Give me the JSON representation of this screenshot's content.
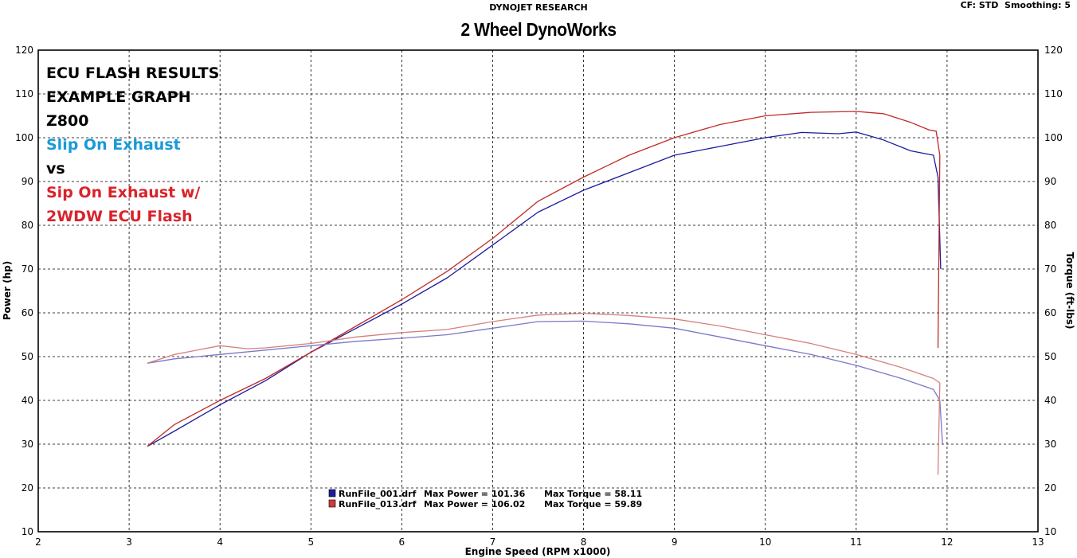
{
  "header": {
    "brand": "DYNOJET RESEARCH",
    "title": "2 Wheel DynoWorks",
    "settings": "CF: STD  Smoothing: 5"
  },
  "annotations": [
    {
      "text": "ECU FLASH RESULTS",
      "color": "#000000"
    },
    {
      "text": "EXAMPLE GRAPH",
      "color": "#000000"
    },
    {
      "text": "Z800",
      "color": "#000000"
    },
    {
      "text": "Slip On Exhaust",
      "color": "#1a9ad8"
    },
    {
      "text": "vs",
      "color": "#000000"
    },
    {
      "text": "Sip On Exhaust w/",
      "color": "#d9232b"
    },
    {
      "text": "2WDW ECU Flash",
      "color": "#d9232b"
    }
  ],
  "chart_data": {
    "type": "line",
    "xlabel": "Engine Speed (RPM x1000)",
    "ylabel": "Power (hp)",
    "y2label": "Torque (ft-lbs)",
    "xlim": [
      2,
      13
    ],
    "ylim": [
      10,
      120
    ],
    "y2lim": [
      10,
      120
    ],
    "xticks": [
      2,
      3,
      4,
      5,
      6,
      7,
      8,
      9,
      10,
      11,
      12,
      13
    ],
    "yticks": [
      10,
      20,
      30,
      40,
      50,
      60,
      70,
      80,
      90,
      100,
      110,
      120
    ],
    "grid": true,
    "legend": [
      {
        "file": "RunFile_001.drf",
        "power_label": "Max Power = 101.36",
        "torque_label": "Max Torque = 58.11",
        "color": "#1c1c9c"
      },
      {
        "file": "RunFile_013.drf",
        "power_label": "Max Power = 106.02",
        "torque_label": "Max Torque = 59.89",
        "color": "#c02a2a"
      }
    ],
    "series": [
      {
        "metric": "power",
        "run": "RunFile_001.drf",
        "color": "#1c1c9c",
        "x": [
          3.2,
          3.5,
          4.0,
          4.5,
          5.0,
          5.5,
          6.0,
          6.5,
          7.0,
          7.5,
          8.0,
          8.5,
          9.0,
          9.5,
          10.0,
          10.4,
          10.8,
          11.0,
          11.3,
          11.6,
          11.85,
          11.9,
          11.93
        ],
        "y": [
          29.5,
          33,
          39,
          44.5,
          51,
          56.5,
          62,
          68,
          75.5,
          83,
          88,
          92,
          96,
          98,
          100,
          101.2,
          100.9,
          101.3,
          99.5,
          97,
          96,
          91,
          70
        ]
      },
      {
        "metric": "power",
        "run": "RunFile_013.drf",
        "color": "#c02a2a",
        "x": [
          3.2,
          3.5,
          4.0,
          4.5,
          5.0,
          5.5,
          6.0,
          6.5,
          7.0,
          7.5,
          8.0,
          8.5,
          9.0,
          9.5,
          10.0,
          10.5,
          11.0,
          11.3,
          11.6,
          11.8,
          11.88,
          11.92,
          11.9
        ],
        "y": [
          29.5,
          34.5,
          40,
          45,
          51,
          57,
          63,
          69.5,
          77,
          85.5,
          91,
          96,
          100,
          103,
          105,
          105.8,
          106,
          105.5,
          103.5,
          101.8,
          101.5,
          96,
          52
        ]
      },
      {
        "metric": "torque",
        "run": "RunFile_001.drf",
        "color": "#7a78c8",
        "x": [
          3.2,
          3.5,
          4.0,
          4.5,
          5.0,
          5.5,
          6.0,
          6.5,
          7.0,
          7.5,
          8.0,
          8.5,
          9.0,
          9.5,
          10.0,
          10.5,
          11.0,
          11.5,
          11.85,
          11.92,
          11.95
        ],
        "y": [
          48.5,
          49.5,
          50.5,
          51.5,
          52.5,
          53.5,
          54.2,
          55,
          56.5,
          58,
          58.1,
          57.5,
          56.5,
          54.5,
          52.5,
          50.5,
          48,
          45,
          42.5,
          40,
          30
        ]
      },
      {
        "metric": "torque",
        "run": "RunFile_013.drf",
        "color": "#d6807e",
        "x": [
          3.2,
          3.5,
          4.0,
          4.3,
          4.5,
          5.0,
          5.5,
          6.0,
          6.5,
          7.0,
          7.5,
          8.0,
          8.5,
          9.0,
          9.5,
          10.0,
          10.5,
          11.0,
          11.5,
          11.85,
          11.92,
          11.9
        ],
        "y": [
          48.5,
          50.5,
          52.5,
          51.8,
          52,
          53,
          54.5,
          55.5,
          56.2,
          58,
          59.5,
          59.9,
          59.4,
          58.6,
          57,
          55,
          53,
          50.5,
          47.5,
          45,
          44,
          23
        ]
      }
    ]
  }
}
